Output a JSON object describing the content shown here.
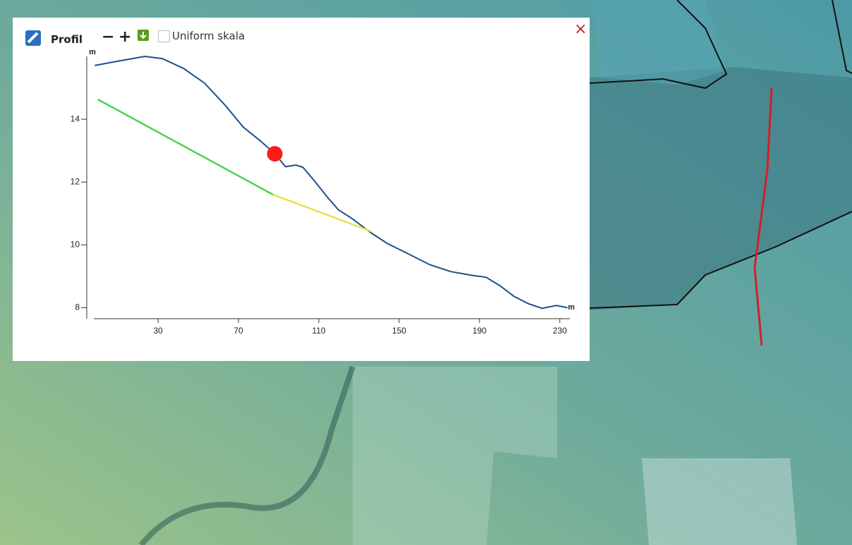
{
  "panel": {
    "title": "Profil",
    "zoom_out": "−",
    "zoom_in": "+",
    "checkbox_label": "Uniform skala",
    "close": "×"
  },
  "chart_data": {
    "type": "line",
    "x_label": "m",
    "y_label": "m",
    "xlim": [
      -2,
      235
    ],
    "ylim": [
      7.65,
      16
    ],
    "xticks": [
      30,
      70,
      110,
      150,
      190,
      230
    ],
    "yticks": [
      8,
      10,
      12,
      14
    ],
    "series": [
      {
        "color": "#1f4e8c",
        "x": [
          -1.5,
          7.6,
          23.4,
          32.1,
          42.6,
          53.1,
          63.6,
          72.4,
          81.1,
          88.1,
          93.4,
          98.6,
          102.1,
          107.4,
          114.4,
          119.7,
          126.7,
          136.1,
          144.2,
          154.7,
          165.2,
          175.7,
          186.2,
          193.2,
          200.2,
          207.2,
          214.2,
          221.2,
          228.3,
          233.8
        ],
        "values": [
          15.71,
          15.82,
          16.0,
          15.93,
          15.62,
          15.15,
          14.43,
          13.75,
          13.3,
          12.9,
          12.49,
          12.54,
          12.47,
          12.07,
          11.51,
          11.12,
          10.83,
          10.38,
          10.04,
          9.71,
          9.37,
          9.15,
          9.03,
          8.97,
          8.7,
          8.36,
          8.13,
          7.98,
          8.07,
          8.0
        ]
      },
      {
        "color": "#4cd34c",
        "x": [
          0,
          87.2
        ],
        "values": [
          14.63,
          11.6
        ]
      },
      {
        "color": "#e8e04a",
        "x": [
          87.2,
          136.1
        ],
        "values": [
          11.6,
          10.43
        ]
      }
    ],
    "marker": {
      "x": 88.1,
      "y": 12.9,
      "color": "#ff1a1a"
    }
  }
}
